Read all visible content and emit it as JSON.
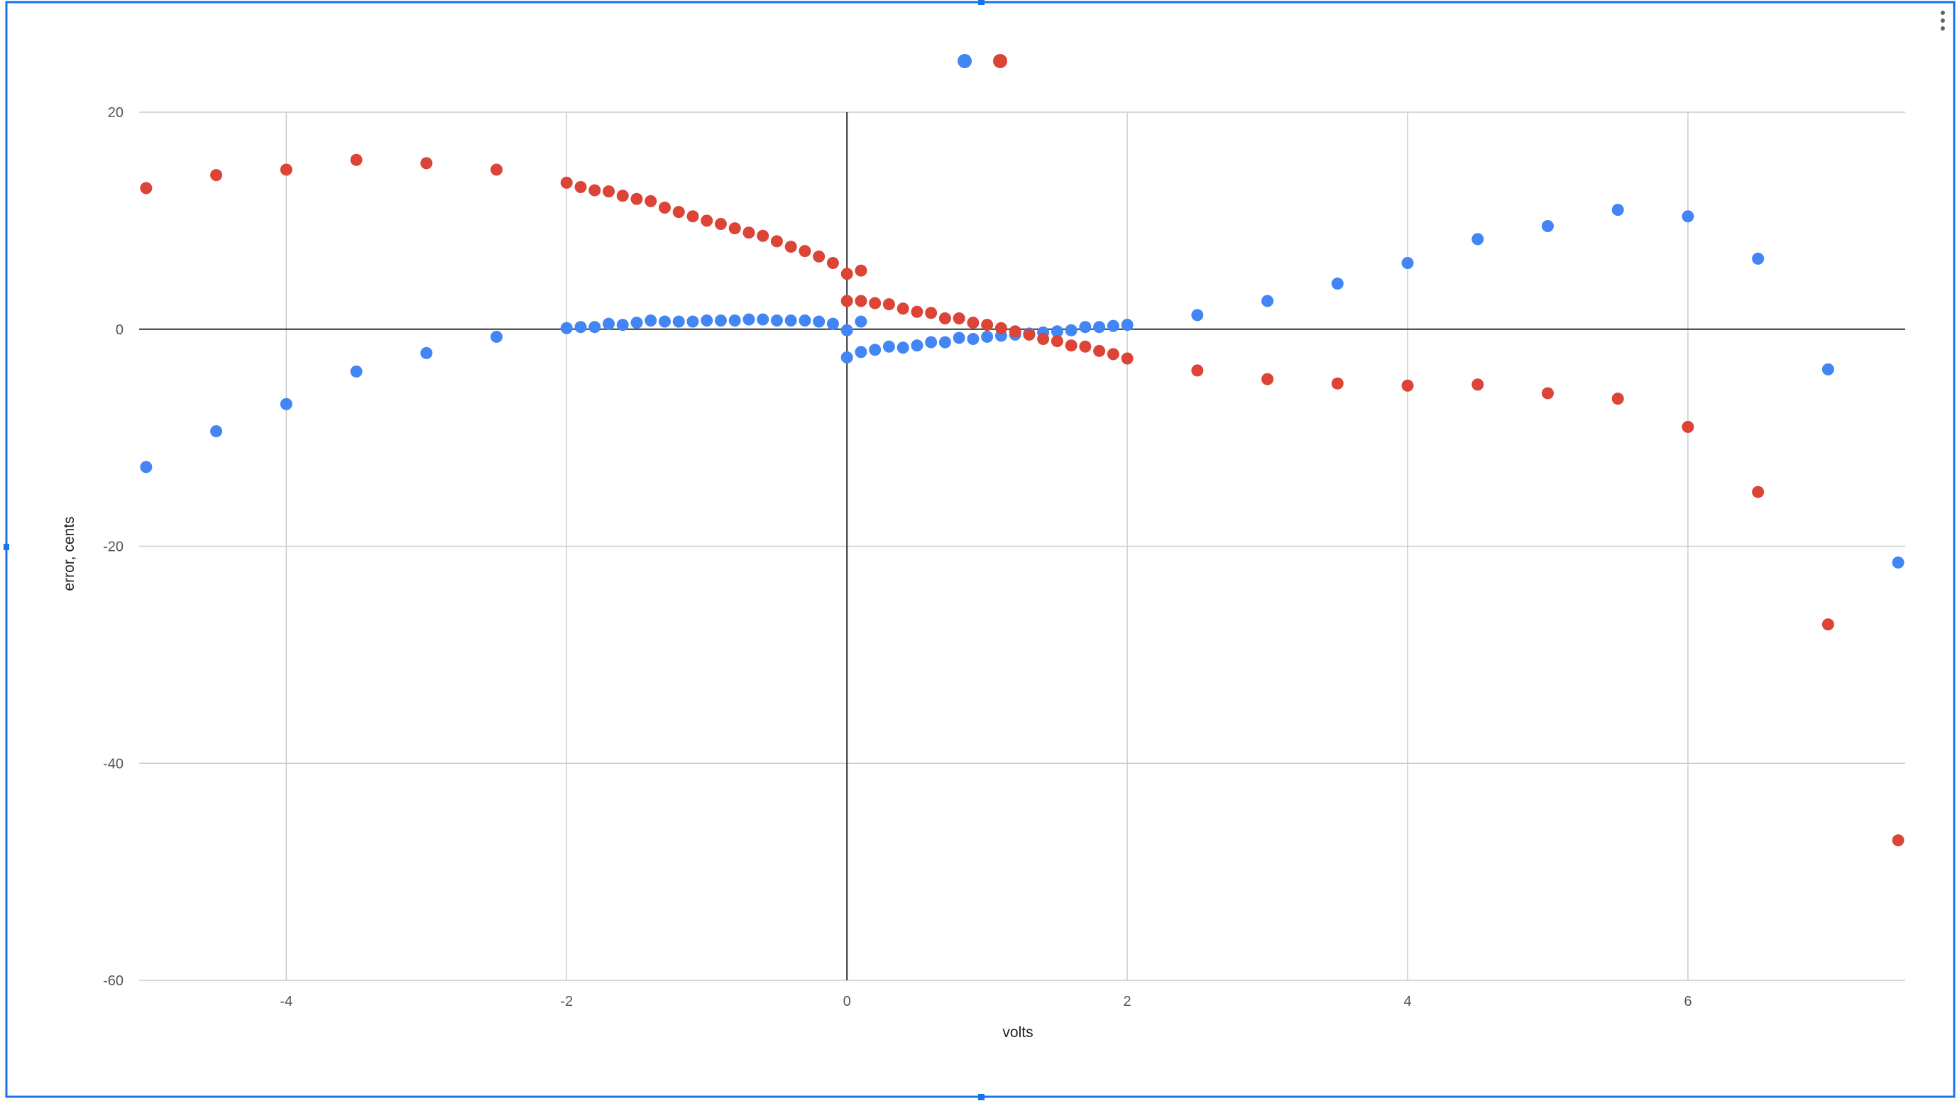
{
  "chart_data": {
    "type": "scatter",
    "title": "",
    "xlabel": "volts",
    "ylabel": "error, cents",
    "xlim": [
      -5.05,
      7.55
    ],
    "ylim": [
      -60,
      20
    ],
    "x_ticks": [
      -4,
      -2,
      0,
      2,
      4,
      6
    ],
    "y_ticks": [
      20,
      0,
      -20,
      -40,
      -60
    ],
    "grid": true,
    "legend": "top-center",
    "series": [
      {
        "color": "#4285f4",
        "points": [
          [
            -5,
            -12.7
          ],
          [
            -4.5,
            -9.4
          ],
          [
            -4,
            -6.9
          ],
          [
            -3.5,
            -3.9
          ],
          [
            -3,
            -2.2
          ],
          [
            -2.5,
            -0.7
          ],
          [
            -2,
            0.1
          ],
          [
            -1.9,
            0.2
          ],
          [
            -1.8,
            0.2
          ],
          [
            -1.7,
            0.5
          ],
          [
            -1.6,
            0.4
          ],
          [
            -1.5,
            0.6
          ],
          [
            -1.4,
            0.8
          ],
          [
            -1.3,
            0.7
          ],
          [
            -1.2,
            0.7
          ],
          [
            -1.1,
            0.7
          ],
          [
            -1,
            0.8
          ],
          [
            -0.9,
            0.8
          ],
          [
            -0.8,
            0.8
          ],
          [
            -0.7,
            0.9
          ],
          [
            -0.6,
            0.9
          ],
          [
            -0.5,
            0.8
          ],
          [
            -0.4,
            0.8
          ],
          [
            -0.3,
            0.8
          ],
          [
            -0.2,
            0.7
          ],
          [
            -0.1,
            0.5
          ],
          [
            0,
            -0.1
          ],
          [
            0.1,
            0.7
          ],
          [
            0,
            -2.6
          ],
          [
            0.1,
            -2.1
          ],
          [
            0.2,
            -1.9
          ],
          [
            0.3,
            -1.6
          ],
          [
            0.4,
            -1.7
          ],
          [
            0.5,
            -1.5
          ],
          [
            0.6,
            -1.2
          ],
          [
            0.7,
            -1.2
          ],
          [
            0.8,
            -0.8
          ],
          [
            0.9,
            -0.9
          ],
          [
            1,
            -0.7
          ],
          [
            1.1,
            -0.6
          ],
          [
            1.2,
            -0.5
          ],
          [
            1.3,
            -0.4
          ],
          [
            1.4,
            -0.3
          ],
          [
            1.5,
            -0.2
          ],
          [
            1.6,
            -0.1
          ],
          [
            1.7,
            0.2
          ],
          [
            1.8,
            0.2
          ],
          [
            1.9,
            0.3
          ],
          [
            2,
            0.4
          ],
          [
            2.5,
            1.3
          ],
          [
            3,
            2.6
          ],
          [
            3.5,
            4.2
          ],
          [
            4,
            6.1
          ],
          [
            4.5,
            8.3
          ],
          [
            5,
            9.5
          ],
          [
            5.5,
            11.0
          ],
          [
            6,
            10.4
          ],
          [
            6.5,
            6.5
          ],
          [
            7,
            -3.7
          ],
          [
            7.5,
            -21.5
          ]
        ]
      },
      {
        "color": "#db4437",
        "points": [
          [
            -5,
            13.0
          ],
          [
            -4.5,
            14.2
          ],
          [
            -4,
            14.7
          ],
          [
            -3.5,
            15.6
          ],
          [
            -3,
            15.3
          ],
          [
            -2.5,
            14.7
          ],
          [
            -2,
            13.5
          ],
          [
            -1.9,
            13.1
          ],
          [
            -1.8,
            12.8
          ],
          [
            -1.7,
            12.7
          ],
          [
            -1.6,
            12.3
          ],
          [
            -1.5,
            12.0
          ],
          [
            -1.4,
            11.8
          ],
          [
            -1.3,
            11.2
          ],
          [
            -1.2,
            10.8
          ],
          [
            -1.1,
            10.4
          ],
          [
            -1,
            10.0
          ],
          [
            -0.9,
            9.7
          ],
          [
            -0.8,
            9.3
          ],
          [
            -0.7,
            8.9
          ],
          [
            -0.6,
            8.6
          ],
          [
            -0.5,
            8.1
          ],
          [
            -0.4,
            7.6
          ],
          [
            -0.3,
            7.2
          ],
          [
            -0.2,
            6.7
          ],
          [
            -0.1,
            6.1
          ],
          [
            0,
            5.1
          ],
          [
            0.1,
            5.4
          ],
          [
            0,
            2.6
          ],
          [
            0.1,
            2.6
          ],
          [
            0.2,
            2.4
          ],
          [
            0.3,
            2.3
          ],
          [
            0.4,
            1.9
          ],
          [
            0.5,
            1.6
          ],
          [
            0.6,
            1.5
          ],
          [
            0.7,
            1.0
          ],
          [
            0.8,
            1.0
          ],
          [
            0.9,
            0.6
          ],
          [
            1,
            0.4
          ],
          [
            1.1,
            0.1
          ],
          [
            1.2,
            -0.2
          ],
          [
            1.3,
            -0.5
          ],
          [
            1.4,
            -0.9
          ],
          [
            1.5,
            -1.1
          ],
          [
            1.6,
            -1.5
          ],
          [
            1.7,
            -1.6
          ],
          [
            1.8,
            -2.0
          ],
          [
            1.9,
            -2.3
          ],
          [
            2,
            -2.7
          ],
          [
            2.5,
            -3.8
          ],
          [
            3,
            -4.6
          ],
          [
            3.5,
            -5.0
          ],
          [
            4,
            -5.2
          ],
          [
            4.5,
            -5.1
          ],
          [
            5,
            -5.9
          ],
          [
            5.5,
            -6.4
          ],
          [
            6,
            -9.0
          ],
          [
            6.5,
            -15.0
          ],
          [
            7,
            -27.2
          ],
          [
            7.5,
            -47.1
          ]
        ]
      }
    ]
  }
}
